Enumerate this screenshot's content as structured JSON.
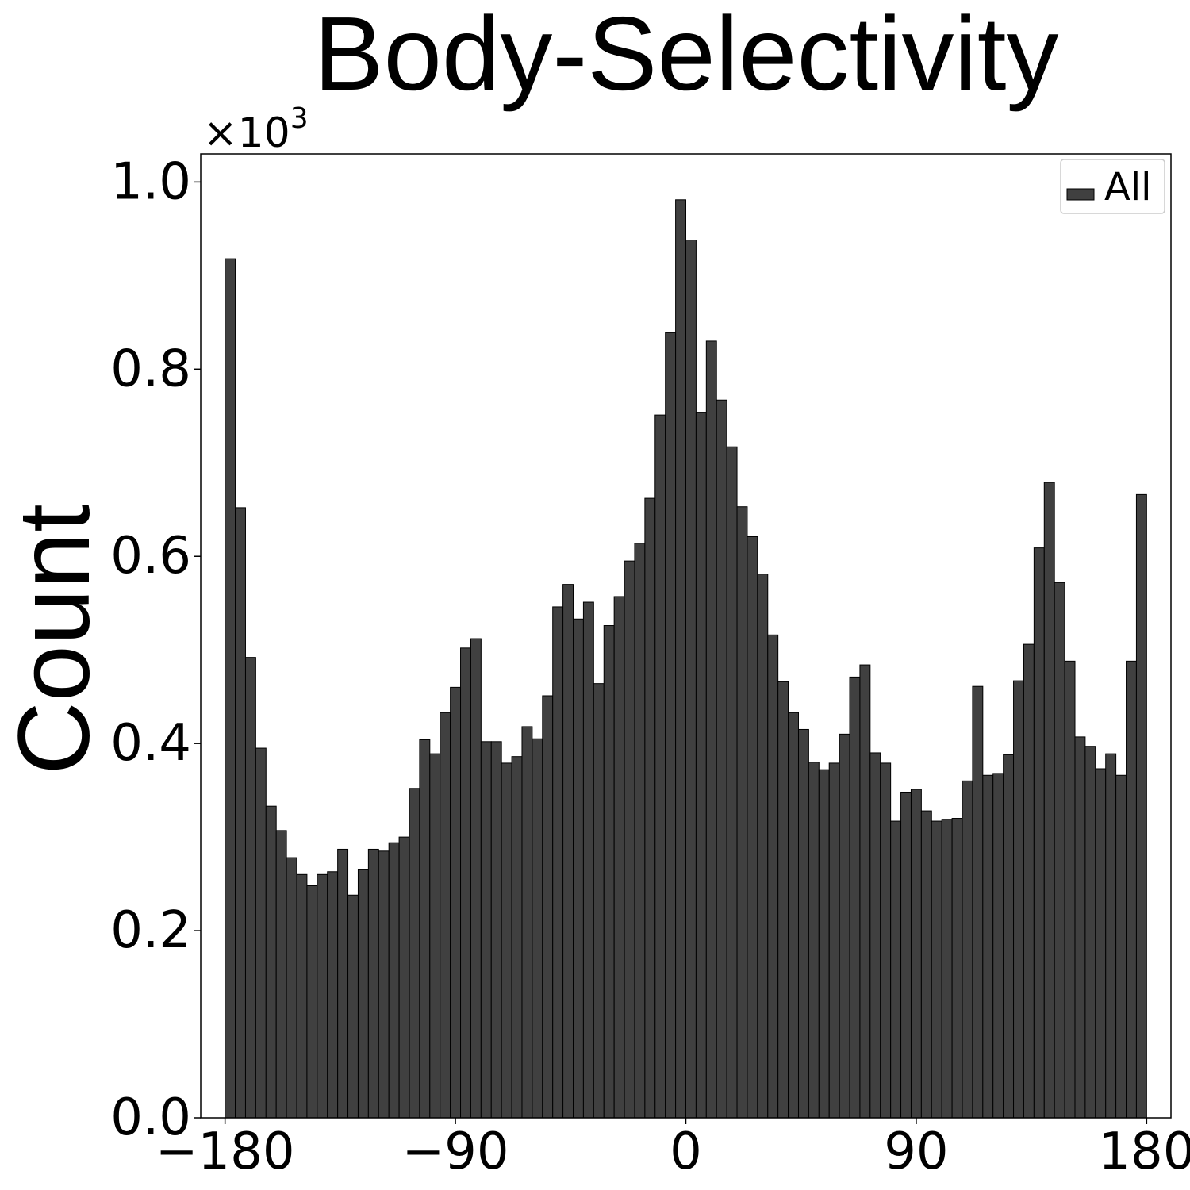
{
  "chart_data": {
    "type": "bar",
    "title": "Body-Selectivity",
    "ylabel": "Count",
    "xlabel": "",
    "y_multiplier": "×10",
    "y_multiplier_exponent": "3",
    "xlim": [
      -189.5,
      189.5
    ],
    "ylim": [
      0,
      1.03
    ],
    "xticks": [
      -180,
      -90,
      0,
      90,
      180
    ],
    "xtick_labels": [
      "−180",
      "−90",
      "0",
      "90",
      "180"
    ],
    "yticks": [
      0.0,
      0.2,
      0.4,
      0.6,
      0.8,
      1.0
    ],
    "ytick_labels": [
      "0.0",
      "0.2",
      "0.4",
      "0.6",
      "0.8",
      "1.0"
    ],
    "bin_start": -180,
    "bin_width": 4,
    "values": [
      0.918,
      0.652,
      0.492,
      0.395,
      0.333,
      0.307,
      0.278,
      0.26,
      0.248,
      0.26,
      0.263,
      0.287,
      0.238,
      0.265,
      0.287,
      0.285,
      0.294,
      0.3,
      0.352,
      0.404,
      0.389,
      0.433,
      0.46,
      0.502,
      0.512,
      0.402,
      0.402,
      0.379,
      0.386,
      0.418,
      0.405,
      0.451,
      0.546,
      0.57,
      0.533,
      0.551,
      0.464,
      0.526,
      0.557,
      0.595,
      0.614,
      0.662,
      0.751,
      0.839,
      0.981,
      0.938,
      0.754,
      0.83,
      0.767,
      0.717,
      0.653,
      0.621,
      0.581,
      0.516,
      0.466,
      0.433,
      0.415,
      0.38,
      0.372,
      0.379,
      0.41,
      0.471,
      0.484,
      0.39,
      0.379,
      0.317,
      0.348,
      0.351,
      0.328,
      0.317,
      0.319,
      0.32,
      0.36,
      0.461,
      0.366,
      0.368,
      0.388,
      0.467,
      0.506,
      0.609,
      0.679,
      0.572,
      0.488,
      0.407,
      0.397,
      0.373,
      0.389,
      0.366,
      0.488,
      0.666
    ],
    "series": [
      {
        "name": "All",
        "color": "#404040"
      }
    ],
    "legend_position": "top-right",
    "grid": false
  }
}
